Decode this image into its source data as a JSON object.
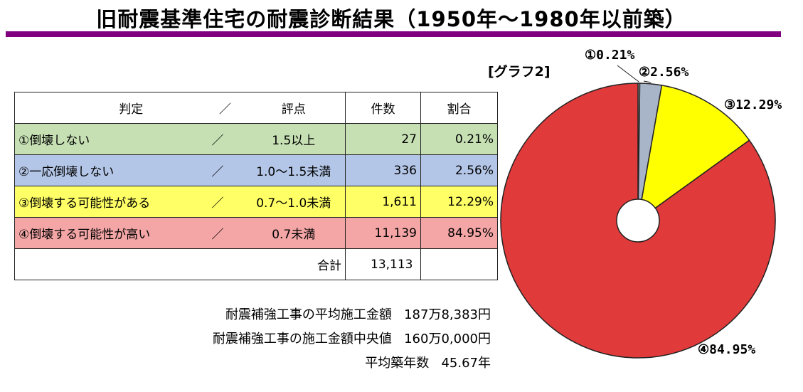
{
  "title": "旧耐震基準住宅の耐震診断結果（1950年～1980年以前築）",
  "colors": {
    "accent_bar": "#800080",
    "row1": "#c6e0b4",
    "row2": "#b4c6e7",
    "row3": "#ffff66",
    "row4": "#f4a6a6",
    "slice1": "#e8e8e8",
    "slice2": "#a8b4c8",
    "slice3": "#ffff00",
    "slice4": "#e03a3a"
  },
  "table": {
    "headers": {
      "judgement": "判定",
      "slash": "／",
      "score": "評点",
      "count": "件数",
      "ratio": "割合"
    },
    "rows": [
      {
        "label": "①倒壊しない",
        "slash": "／",
        "score": "1.5以上",
        "count": "27",
        "ratio": "0.21%"
      },
      {
        "label": "②一応倒壊しない",
        "slash": "／",
        "score": "1.0～1.5未満",
        "count": "336",
        "ratio": "2.56%"
      },
      {
        "label": "③倒壊する可能性がある",
        "slash": "／",
        "score": "0.7～1.0未満",
        "count": "1,611",
        "ratio": "12.29%"
      },
      {
        "label": "④倒壊する可能性が高い",
        "slash": "／",
        "score": "0.7未満",
        "count": "11,139",
        "ratio": "84.95%"
      }
    ],
    "total": {
      "label": "合計",
      "count": "13,113"
    }
  },
  "summary": [
    {
      "label": "耐震補強工事の平均施工金額",
      "value": "187万8,383円"
    },
    {
      "label": "耐震補強工事の施工金額中央値",
      "value": "160万0,000円"
    },
    {
      "label": "平均築年数",
      "value": "45.67年"
    }
  ],
  "chart_data": {
    "type": "pie",
    "title": "[グラフ2]",
    "categories": [
      "①",
      "②",
      "③",
      "④"
    ],
    "values": [
      0.21,
      2.56,
      12.29,
      84.95
    ],
    "labels": [
      "①0.21%",
      "②2.56%",
      "③12.29%",
      "④84.95%"
    ],
    "counts": [
      27,
      336,
      1611,
      11139
    ],
    "legend": "none"
  }
}
